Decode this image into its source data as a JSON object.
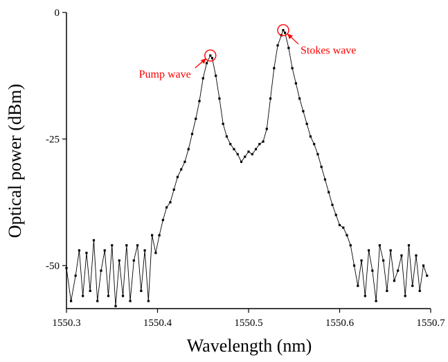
{
  "chart_data": {
    "type": "line",
    "title": "",
    "xlabel": "Wavelength (nm)",
    "ylabel": "Optical power (dBm)",
    "xlim": [
      1550.3,
      1550.7
    ],
    "ylim": [
      -58.5,
      0
    ],
    "x_ticks": [
      1550.3,
      1550.4,
      1550.5,
      1550.6,
      1550.7
    ],
    "x_tick_labels": [
      "1550.3",
      "1550.4",
      "1550.5",
      "1550.6",
      "1550.7"
    ],
    "y_ticks": [
      0,
      -25,
      -50
    ],
    "y_tick_labels": [
      "0",
      "-25",
      "-50"
    ],
    "grid": false,
    "legend": "none",
    "series": [
      {
        "marker": "square",
        "color": "#000000",
        "x": [
          1550.3,
          1550.305,
          1550.31,
          1550.314,
          1550.318,
          1550.322,
          1550.326,
          1550.33,
          1550.334,
          1550.338,
          1550.342,
          1550.346,
          1550.35,
          1550.354,
          1550.358,
          1550.362,
          1550.366,
          1550.37,
          1550.374,
          1550.378,
          1550.382,
          1550.386,
          1550.39,
          1550.394,
          1550.398,
          1550.402,
          1550.406,
          1550.41,
          1550.414,
          1550.418,
          1550.422,
          1550.426,
          1550.43,
          1550.434,
          1550.438,
          1550.442,
          1550.446,
          1550.45,
          1550.454,
          1550.458,
          1550.46,
          1550.464,
          1550.468,
          1550.472,
          1550.476,
          1550.48,
          1550.484,
          1550.488,
          1550.492,
          1550.496,
          1550.5,
          1550.504,
          1550.508,
          1550.512,
          1550.516,
          1550.52,
          1550.524,
          1550.528,
          1550.532,
          1550.536,
          1550.538,
          1550.54,
          1550.544,
          1550.548,
          1550.552,
          1550.556,
          1550.56,
          1550.564,
          1550.568,
          1550.572,
          1550.576,
          1550.58,
          1550.584,
          1550.588,
          1550.592,
          1550.596,
          1550.6,
          1550.604,
          1550.608,
          1550.612,
          1550.616,
          1550.62,
          1550.624,
          1550.628,
          1550.632,
          1550.636,
          1550.64,
          1550.644,
          1550.648,
          1550.652,
          1550.656,
          1550.66,
          1550.664,
          1550.668,
          1550.672,
          1550.676,
          1550.68,
          1550.684,
          1550.688,
          1550.692,
          1550.696
        ],
        "y": [
          -50.5,
          -57,
          -52,
          -47,
          -56,
          -47.5,
          -55,
          -45,
          -57,
          -51,
          -47,
          -56,
          -46,
          -58,
          -49,
          -56,
          -46,
          -57,
          -49,
          -46,
          -55,
          -47,
          -57,
          -44,
          -47.5,
          -44,
          -41,
          -38.5,
          -37.5,
          -35,
          -32.5,
          -31,
          -29.5,
          -27,
          -24,
          -21,
          -17.5,
          -13,
          -10,
          -8.5,
          -9,
          -12.5,
          -17,
          -22,
          -24.5,
          -26,
          -27,
          -28,
          -29.5,
          -28.5,
          -27.5,
          -28,
          -27,
          -26,
          -25.5,
          -23,
          -17,
          -11,
          -6.5,
          -4.5,
          -3.5,
          -4,
          -7,
          -11,
          -14,
          -17,
          -19.5,
          -22,
          -24.5,
          -26,
          -28,
          -30.5,
          -33,
          -35.5,
          -38,
          -40,
          -42,
          -42.5,
          -44,
          -46,
          -50,
          -54,
          -49,
          -56,
          -47,
          -51,
          -57,
          -46,
          -49,
          -55,
          -47,
          -53,
          -51,
          -48,
          -56,
          -46,
          -54,
          -48,
          -55,
          -50,
          -52
        ]
      }
    ],
    "annotations": [
      {
        "text": "Pump wave",
        "x": 1550.458,
        "y": -8.5,
        "color": "#ff0000"
      },
      {
        "text": "Stokes wave",
        "x": 1550.538,
        "y": -3.5,
        "color": "#ff0000"
      }
    ]
  }
}
